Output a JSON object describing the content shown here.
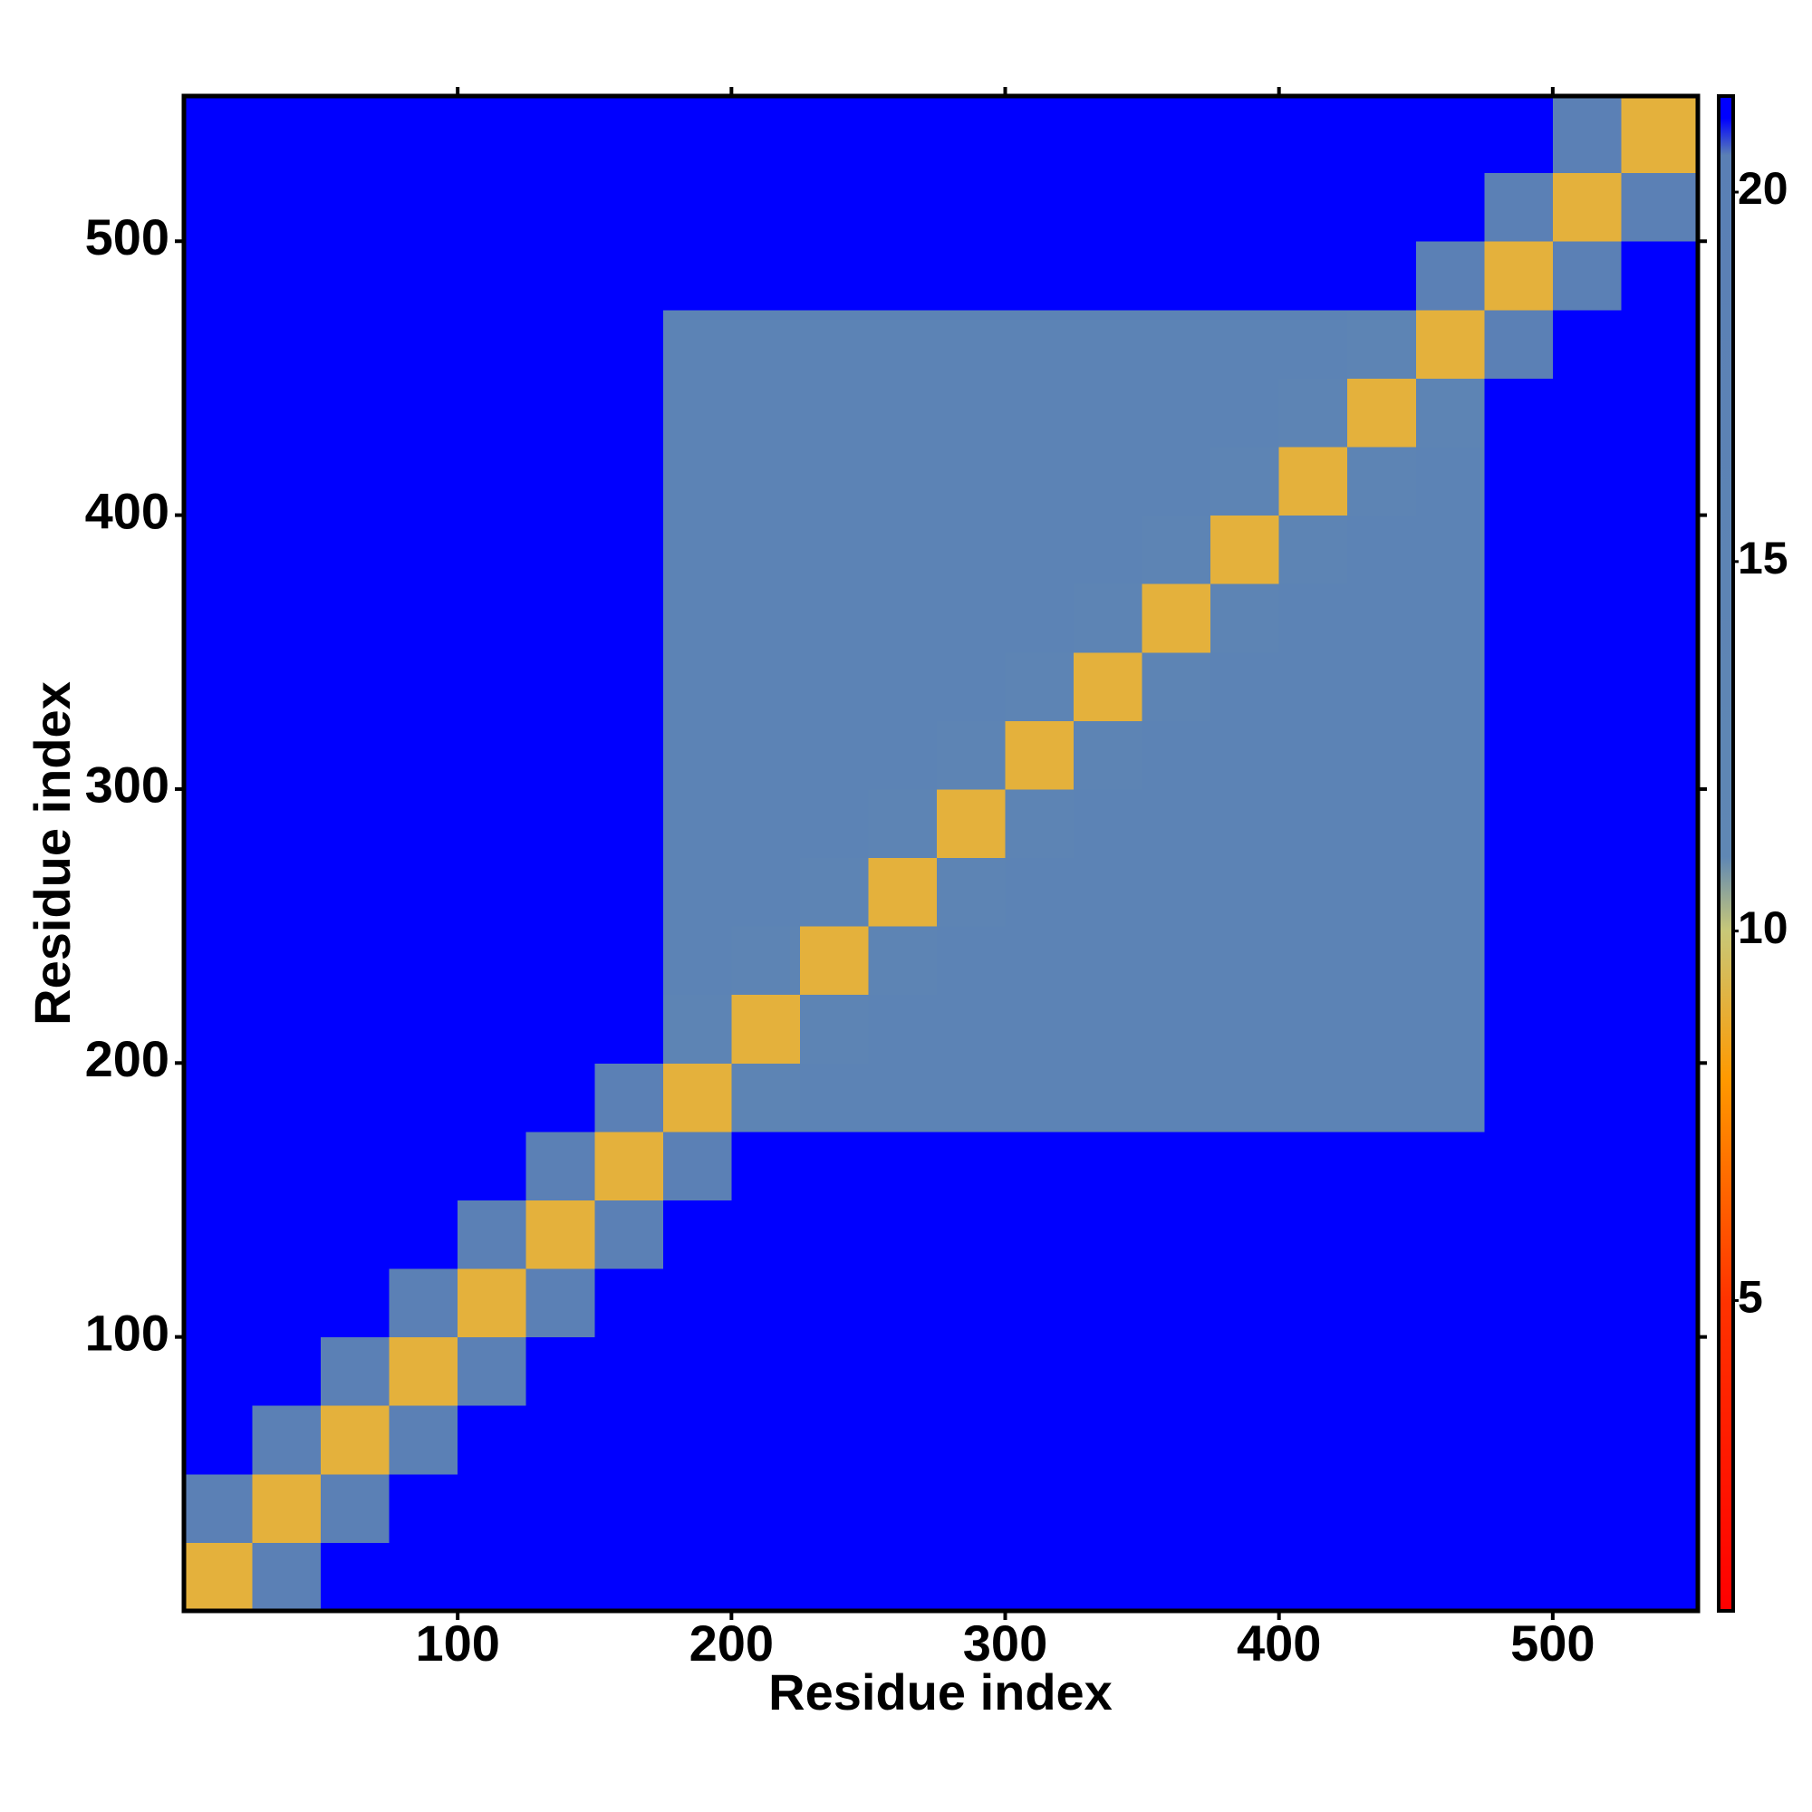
{
  "chart_data": {
    "type": "heatmap",
    "xlabel": "Residue index",
    "ylabel": "Residue index",
    "xbins": [
      0,
      25,
      50,
      75,
      100,
      125,
      150,
      175,
      200,
      225,
      250,
      275,
      300,
      325,
      350,
      375,
      400,
      425,
      450,
      475,
      500,
      525,
      553
    ],
    "ybins": [
      0,
      25,
      50,
      75,
      100,
      125,
      150,
      175,
      200,
      225,
      250,
      275,
      300,
      325,
      350,
      375,
      400,
      425,
      450,
      475,
      500,
      525,
      553
    ],
    "z": [
      [
        9,
        19,
        21,
        21,
        21,
        21,
        21,
        21,
        21,
        21,
        21,
        21,
        21,
        21,
        21,
        21,
        21,
        21,
        21,
        21,
        21,
        21
      ],
      [
        19,
        9,
        19,
        21,
        21,
        21,
        21,
        21,
        21,
        21,
        21,
        21,
        21,
        21,
        21,
        21,
        21,
        21,
        21,
        21,
        21,
        21
      ],
      [
        21,
        19,
        9,
        19,
        21,
        21,
        21,
        21,
        21,
        21,
        21,
        21,
        21,
        21,
        21,
        21,
        21,
        21,
        21,
        21,
        21,
        21
      ],
      [
        21,
        21,
        19,
        9,
        19,
        21,
        21,
        21,
        21,
        21,
        21,
        21,
        21,
        21,
        21,
        21,
        21,
        21,
        21,
        21,
        21,
        21
      ],
      [
        21,
        21,
        21,
        19,
        9,
        19,
        21,
        21,
        21,
        21,
        21,
        21,
        21,
        21,
        21,
        21,
        21,
        21,
        21,
        21,
        21,
        21
      ],
      [
        21,
        21,
        21,
        21,
        19,
        9,
        19,
        21,
        21,
        21,
        21,
        21,
        21,
        21,
        21,
        21,
        21,
        21,
        21,
        21,
        21,
        21
      ],
      [
        21,
        21,
        21,
        21,
        21,
        19,
        9,
        19,
        21,
        21,
        21,
        21,
        21,
        21,
        21,
        21,
        21,
        21,
        21,
        21,
        21,
        21
      ],
      [
        21,
        21,
        21,
        21,
        21,
        21,
        19,
        9,
        14,
        16,
        16,
        16,
        16,
        16,
        16,
        16,
        16,
        16,
        16,
        21,
        21,
        21
      ],
      [
        21,
        21,
        21,
        21,
        21,
        21,
        21,
        14,
        9,
        14,
        16,
        16,
        16,
        16,
        16,
        16,
        16,
        16,
        16,
        21,
        21,
        21
      ],
      [
        21,
        21,
        21,
        21,
        21,
        21,
        21,
        16,
        14,
        9,
        14,
        16,
        16,
        16,
        16,
        16,
        16,
        16,
        16,
        21,
        21,
        21
      ],
      [
        21,
        21,
        21,
        21,
        21,
        21,
        21,
        16,
        16,
        14,
        9,
        14,
        16,
        16,
        16,
        16,
        16,
        16,
        16,
        21,
        21,
        21
      ],
      [
        21,
        21,
        21,
        21,
        21,
        21,
        21,
        16,
        16,
        16,
        14,
        9,
        14,
        16,
        16,
        16,
        16,
        16,
        16,
        21,
        21,
        21
      ],
      [
        21,
        21,
        21,
        21,
        21,
        21,
        21,
        16,
        16,
        16,
        16,
        14,
        9,
        14,
        16,
        16,
        16,
        16,
        16,
        21,
        21,
        21
      ],
      [
        21,
        21,
        21,
        21,
        21,
        21,
        21,
        16,
        16,
        16,
        16,
        16,
        14,
        9,
        14,
        16,
        16,
        16,
        16,
        21,
        21,
        21
      ],
      [
        21,
        21,
        21,
        21,
        21,
        21,
        21,
        16,
        16,
        16,
        16,
        16,
        16,
        14,
        9,
        14,
        16,
        16,
        16,
        21,
        21,
        21
      ],
      [
        21,
        21,
        21,
        21,
        21,
        21,
        21,
        16,
        16,
        16,
        16,
        16,
        16,
        16,
        14,
        9,
        14,
        16,
        16,
        21,
        21,
        21
      ],
      [
        21,
        21,
        21,
        21,
        21,
        21,
        21,
        16,
        16,
        16,
        16,
        16,
        16,
        16,
        16,
        14,
        9,
        14,
        16,
        21,
        21,
        21
      ],
      [
        21,
        21,
        21,
        21,
        21,
        21,
        21,
        16,
        16,
        16,
        16,
        16,
        16,
        16,
        16,
        16,
        14,
        9,
        14,
        21,
        21,
        21
      ],
      [
        21,
        21,
        21,
        21,
        21,
        21,
        21,
        16,
        16,
        16,
        16,
        16,
        16,
        16,
        16,
        16,
        16,
        14,
        9,
        19,
        21,
        21
      ],
      [
        21,
        21,
        21,
        21,
        21,
        21,
        21,
        21,
        21,
        21,
        21,
        21,
        21,
        21,
        21,
        21,
        21,
        21,
        19,
        9,
        19,
        21
      ],
      [
        21,
        21,
        21,
        21,
        21,
        21,
        21,
        21,
        21,
        21,
        21,
        21,
        21,
        21,
        21,
        21,
        21,
        21,
        21,
        19,
        9,
        19
      ],
      [
        21,
        21,
        21,
        21,
        21,
        21,
        21,
        21,
        21,
        21,
        21,
        21,
        21,
        21,
        21,
        21,
        21,
        21,
        21,
        21,
        19,
        9
      ]
    ],
    "xlim": [
      0,
      553
    ],
    "ylim": [
      0,
      553
    ],
    "xticks": [
      100,
      200,
      300,
      400,
      500
    ],
    "yticks": [
      100,
      200,
      300,
      400,
      500
    ],
    "zlim": [
      0.8,
      21.3
    ],
    "zticks": [
      5,
      10,
      15,
      20
    ],
    "colorscale": [
      [
        0.8,
        "#ff0000"
      ],
      [
        5,
        "#ff3300"
      ],
      [
        8,
        "#ff9900"
      ],
      [
        10,
        "#c8c878"
      ],
      [
        11,
        "#5f87b4"
      ],
      [
        20.5,
        "#5a7fb5"
      ],
      [
        21,
        "#0000ff"
      ]
    ]
  }
}
